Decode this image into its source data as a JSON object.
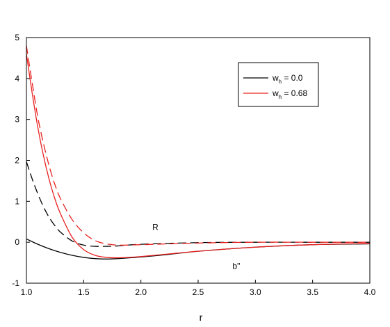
{
  "chart_data": {
    "type": "line",
    "title": "",
    "xlabel": "r",
    "ylabel": "",
    "xlim": [
      1.0,
      4.0
    ],
    "ylim": [
      -1,
      5
    ],
    "xticks": [
      "1.0",
      "1.5",
      "2.0",
      "2.5",
      "3.0",
      "3.5",
      "4.0"
    ],
    "yticks": [
      "-1",
      "0",
      "1",
      "2",
      "3",
      "4",
      "5"
    ],
    "grid": false,
    "legend_position": "top-right",
    "legend": [
      {
        "prefix": "w",
        "sub": "h",
        "suffix": " = 0.0",
        "color": "#000000"
      },
      {
        "prefix": "w",
        "sub": "h",
        "suffix": " = 0.68",
        "color": "#e8201e"
      }
    ],
    "annotations": [
      {
        "text": "R",
        "x": 2.1,
        "y": 0.3
      },
      {
        "text": "b\"",
        "x": 2.8,
        "y": -0.65
      }
    ],
    "series": [
      {
        "group": "R",
        "w_h": 0.0,
        "color": "#000000",
        "dash": true,
        "x": [
          1.0,
          1.05,
          1.1,
          1.15,
          1.2,
          1.25,
          1.3,
          1.4,
          1.5,
          1.6,
          1.7,
          1.8,
          2.0,
          2.5,
          3.0,
          3.5,
          4.0
        ],
        "y": [
          1.97,
          1.55,
          1.18,
          0.86,
          0.6,
          0.4,
          0.24,
          0.03,
          -0.07,
          -0.1,
          -0.1,
          -0.09,
          -0.05,
          -0.01,
          0.0,
          0.0,
          0.0
        ]
      },
      {
        "group": "R",
        "w_h": 0.68,
        "color": "#e8201e",
        "dash": true,
        "x": [
          1.0,
          1.05,
          1.1,
          1.15,
          1.2,
          1.25,
          1.3,
          1.4,
          1.5,
          1.6,
          1.7,
          1.8,
          2.0,
          2.5,
          3.0,
          3.5,
          4.0
        ],
        "y": [
          4.8,
          3.9,
          3.05,
          2.4,
          1.85,
          1.4,
          1.05,
          0.55,
          0.23,
          0.04,
          -0.04,
          -0.07,
          -0.06,
          -0.02,
          0.0,
          0.0,
          0.0
        ]
      },
      {
        "group": "b\"",
        "w_h": 0.0,
        "color": "#000000",
        "dash": false,
        "x": [
          1.0,
          1.1,
          1.2,
          1.3,
          1.4,
          1.5,
          1.6,
          1.7,
          1.8,
          2.0,
          2.2,
          2.5,
          3.0,
          3.5,
          4.0
        ],
        "y": [
          0.08,
          -0.05,
          -0.16,
          -0.25,
          -0.32,
          -0.37,
          -0.4,
          -0.41,
          -0.4,
          -0.36,
          -0.31,
          -0.22,
          -0.12,
          -0.06,
          -0.04
        ]
      },
      {
        "group": "b\"",
        "w_h": 0.68,
        "color": "#e8201e",
        "dash": false,
        "x": [
          1.0,
          1.05,
          1.1,
          1.15,
          1.2,
          1.25,
          1.3,
          1.4,
          1.5,
          1.6,
          1.7,
          1.8,
          2.0,
          2.5,
          3.0,
          3.5,
          4.0
        ],
        "y": [
          4.6,
          3.65,
          2.8,
          2.1,
          1.52,
          1.05,
          0.68,
          0.12,
          -0.18,
          -0.32,
          -0.37,
          -0.38,
          -0.35,
          -0.22,
          -0.12,
          -0.06,
          -0.03
        ]
      }
    ]
  }
}
